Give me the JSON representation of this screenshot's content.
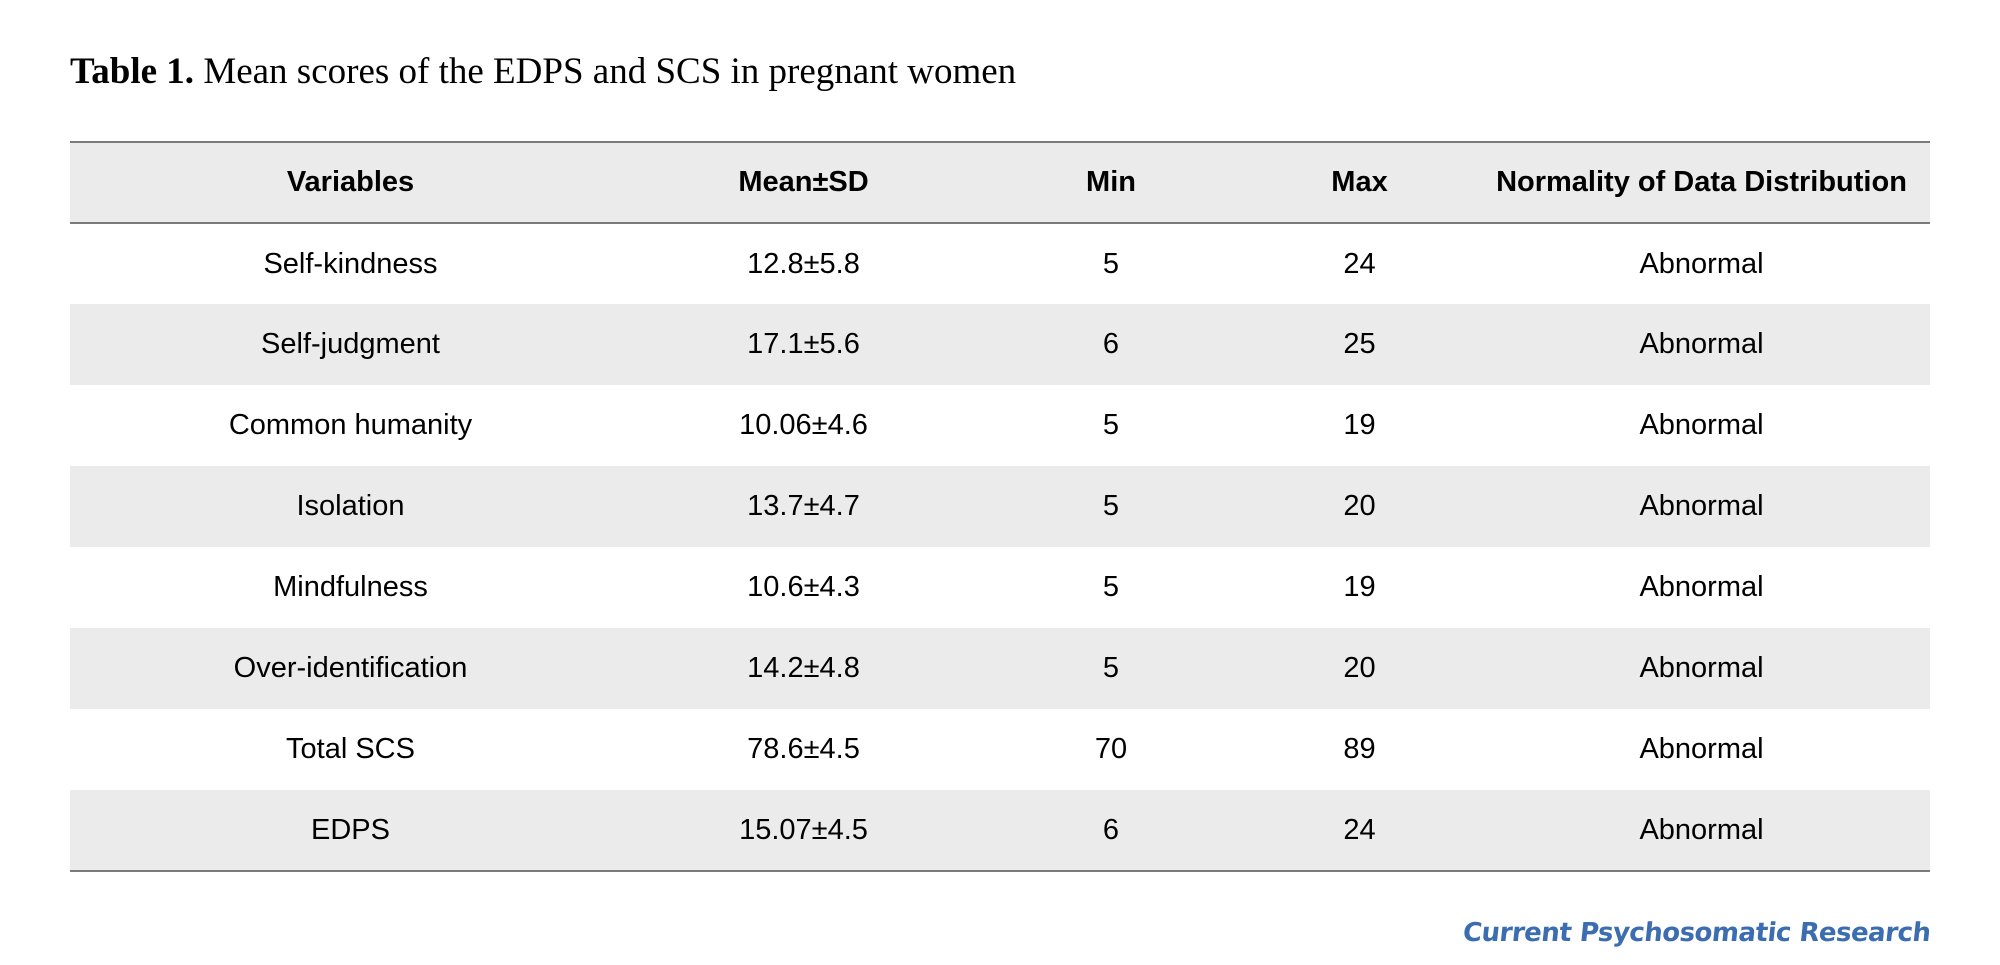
{
  "caption": {
    "label": "Table 1.",
    "text": " Mean scores of the EDPS and SCS in pregnant women"
  },
  "table": {
    "columns": [
      "Variables",
      "Mean±SD",
      "Min",
      "Max",
      "Normality of Data Distribution"
    ],
    "rows": [
      {
        "variable": "Self-kindness",
        "mean_sd": "12.8±5.8",
        "min": "5",
        "max": "24",
        "normality": "Abnormal"
      },
      {
        "variable": "Self-judgment",
        "mean_sd": "17.1±5.6",
        "min": "6",
        "max": "25",
        "normality": "Abnormal"
      },
      {
        "variable": "Common humanity",
        "mean_sd": "10.06±4.6",
        "min": "5",
        "max": "19",
        "normality": "Abnormal"
      },
      {
        "variable": "Isolation",
        "mean_sd": "13.7±4.7",
        "min": "5",
        "max": "20",
        "normality": "Abnormal"
      },
      {
        "variable": "Mindfulness",
        "mean_sd": "10.6±4.3",
        "min": "5",
        "max": "19",
        "normality": "Abnormal"
      },
      {
        "variable": "Over-identification",
        "mean_sd": "14.2±4.8",
        "min": "5",
        "max": "20",
        "normality": "Abnormal"
      },
      {
        "variable": "Total SCS",
        "mean_sd": "78.6±4.5",
        "min": "70",
        "max": "89",
        "normality": "Abnormal"
      },
      {
        "variable": "EDPS",
        "mean_sd": "15.07±4.5",
        "min": "6",
        "max": "24",
        "normality": "Abnormal"
      }
    ],
    "stripe_color": "#ebebeb",
    "rule_color": "#7a7a7a"
  },
  "journal": {
    "name": "Current Psychosomatic Research",
    "color": "#3b6db0"
  }
}
